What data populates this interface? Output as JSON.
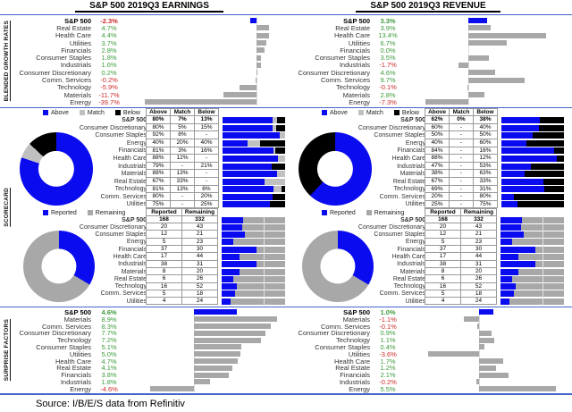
{
  "titles": {
    "earnings": "S&P 500 2019Q3 EARNINGS",
    "revenue": "S&P 500 2019Q3 REVENUE"
  },
  "section_labels": {
    "growth": "BLENDED GROWTH RATES",
    "scorecard": "SCORECARD",
    "surprise": "SURPRISE FACTORS"
  },
  "source_line": "Source: I/B/E/S data from Refinitiv",
  "colors": {
    "blue": "#0b0bf0",
    "gray": "#a8a8a8",
    "silver": "#c0c0c0",
    "black": "#000000",
    "green": "#3d9c3d",
    "red": "#cc2b2b",
    "divider": "#4466cc"
  },
  "chart_data": [
    {
      "id": "earnings-growth",
      "type": "bar",
      "title": "S&P 500 2019Q3 Earnings — Blended Growth Rates (%)",
      "categories": [
        "S&P 500",
        "Real Estate",
        "Health Care",
        "Utilities",
        "Financials",
        "Consumer Staples",
        "Industrials",
        "Consumer Discretionary",
        "Comm. Services",
        "Technology",
        "Materials",
        "Energy"
      ],
      "values": [
        -2.3,
        4.7,
        4.4,
        3.7,
        2.8,
        1.8,
        1.6,
        0.2,
        -0.2,
        -5.9,
        -11.7,
        -39.7
      ],
      "labels": [
        "-2.3%",
        "4.7%",
        "4.4%",
        "3.7%",
        "2.8%",
        "1.8%",
        "1.6%",
        "0.2%",
        "-0.2%",
        "-5.9%",
        "-11.7%",
        "-39.7%"
      ],
      "xlim": [
        -41,
        9
      ],
      "highlight_index": 0
    },
    {
      "id": "revenue-growth",
      "type": "bar",
      "title": "S&P 500 2019Q3 Revenue — Blended Growth Rates (%)",
      "categories": [
        "S&P 500",
        "Real Estate",
        "Health Care",
        "Utilities",
        "Financials",
        "Consumer Staples",
        "Industrials",
        "Consumer Discretionary",
        "Comm. Services",
        "Technology",
        "Materials",
        "Energy"
      ],
      "values": [
        3.3,
        3.9,
        13.4,
        6.7,
        0.0,
        3.5,
        -1.7,
        4.6,
        9.7,
        -0.1,
        2.8,
        -7.3
      ],
      "labels": [
        "3.3%",
        "3.9%",
        "13.4%",
        "6.7%",
        "0.0%",
        "3.5%",
        "-1.7%",
        "4.6%",
        "9.7%",
        "-0.1%",
        "2.8%",
        "-7.3%"
      ],
      "xlim": [
        -8.2,
        15.8
      ],
      "highlight_index": 0
    },
    {
      "id": "earnings-scorecard-above-match-below",
      "type": "table",
      "title": "Earnings Scorecard — Above / Match / Below",
      "legend": [
        "Above",
        "Match",
        "Below"
      ],
      "headers": [
        "Above",
        "Match",
        "Below"
      ],
      "categories": [
        "S&P 500",
        "Consumer Discretionary",
        "Consumer Staples",
        "Energy",
        "Financials",
        "Health Care",
        "Industrials",
        "Materials",
        "Real Estate",
        "Technology",
        "Comm. Services",
        "Utilities"
      ],
      "rows": [
        [
          "80%",
          "7%",
          "13%"
        ],
        [
          "80%",
          "5%",
          "15%"
        ],
        [
          "92%",
          "8%",
          "-"
        ],
        [
          "40%",
          "20%",
          "40%"
        ],
        [
          "81%",
          "3%",
          "16%"
        ],
        [
          "88%",
          "12%",
          "-"
        ],
        [
          "79%",
          "-",
          "21%"
        ],
        [
          "88%",
          "13%",
          "-"
        ],
        [
          "67%",
          "33%",
          "-"
        ],
        [
          "81%",
          "13%",
          "6%"
        ],
        [
          "80%",
          "-",
          "20%"
        ],
        [
          "75%",
          "-",
          "25%"
        ]
      ],
      "donut": {
        "type": "pie",
        "labels": [
          "Above",
          "Match",
          "Below"
        ],
        "values": [
          80,
          7,
          13
        ]
      }
    },
    {
      "id": "earnings-scorecard-reported",
      "type": "table",
      "title": "Earnings Scorecard — Reported / Remaining",
      "legend": [
        "Reported",
        "Remaining"
      ],
      "headers": [
        "Reported",
        "Remaining"
      ],
      "categories": [
        "S&P 500",
        "Consumer Discretionary",
        "Consumer Staples",
        "Energy",
        "Financials",
        "Health Care",
        "Industrials",
        "Materials",
        "Real Estate",
        "Technology",
        "Comm. Services",
        "Utilities"
      ],
      "rows": [
        [
          168,
          332
        ],
        [
          20,
          43
        ],
        [
          12,
          21
        ],
        [
          5,
          23
        ],
        [
          37,
          30
        ],
        [
          17,
          44
        ],
        [
          38,
          31
        ],
        [
          8,
          20
        ],
        [
          6,
          26
        ],
        [
          16,
          52
        ],
        [
          5,
          18
        ],
        [
          4,
          24
        ]
      ],
      "donut": {
        "type": "pie",
        "labels": [
          "Reported",
          "Remaining"
        ],
        "values": [
          168,
          332
        ]
      }
    },
    {
      "id": "revenue-scorecard-above-match-below",
      "type": "table",
      "title": "Revenue Scorecard — Above / Match / Below",
      "legend": [
        "Above",
        "Match",
        "Below"
      ],
      "headers": [
        "Above",
        "Match",
        "Below"
      ],
      "categories": [
        "S&P 500",
        "Consumer Discretionary",
        "Consumer Staples",
        "Energy",
        "Financials",
        "Health Care",
        "Industrials",
        "Materials",
        "Real Estate",
        "Technology",
        "Comm. Services",
        "Utilities"
      ],
      "rows": [
        [
          "62%",
          "0%",
          "38%"
        ],
        [
          "60%",
          "-",
          "40%"
        ],
        [
          "50%",
          "-",
          "50%"
        ],
        [
          "40%",
          "-",
          "60%"
        ],
        [
          "84%",
          "-",
          "16%"
        ],
        [
          "88%",
          "-",
          "12%"
        ],
        [
          "47%",
          "-",
          "53%"
        ],
        [
          "38%",
          "-",
          "63%"
        ],
        [
          "67%",
          "-",
          "33%"
        ],
        [
          "69%",
          "-",
          "31%"
        ],
        [
          "20%",
          "-",
          "80%"
        ],
        [
          "25%",
          "-",
          "75%"
        ]
      ],
      "donut": {
        "type": "pie",
        "labels": [
          "Above",
          "Match",
          "Below"
        ],
        "values": [
          62,
          0,
          38
        ]
      }
    },
    {
      "id": "revenue-scorecard-reported",
      "type": "table",
      "title": "Revenue Scorecard — Reported / Remaining",
      "legend": [
        "Reported",
        "Remaining"
      ],
      "headers": [
        "Reported",
        "Remaining"
      ],
      "categories": [
        "S&P 500",
        "Consumer Discretionary",
        "Consumer Staples",
        "Energy",
        "Financials",
        "Health Care",
        "Industrials",
        "Materials",
        "Real Estate",
        "Technology",
        "Comm. Services",
        "Utilities"
      ],
      "rows": [
        [
          168,
          332
        ],
        [
          20,
          43
        ],
        [
          12,
          21
        ],
        [
          5,
          23
        ],
        [
          37,
          30
        ],
        [
          17,
          44
        ],
        [
          38,
          31
        ],
        [
          8,
          20
        ],
        [
          6,
          26
        ],
        [
          16,
          52
        ],
        [
          5,
          18
        ],
        [
          4,
          24
        ]
      ],
      "donut": {
        "type": "pie",
        "labels": [
          "Reported",
          "Remaining"
        ],
        "values": [
          168,
          332
        ]
      }
    },
    {
      "id": "earnings-surprise",
      "type": "bar",
      "title": "Earnings Surprise Factors (%)",
      "categories": [
        "S&P 500",
        "Materials",
        "Comm. Services",
        "Consumer Discretionary",
        "Technology",
        "Consumer Staples",
        "Utilities",
        "Health Care",
        "Real Estate",
        "Financials",
        "Industrials",
        "Energy"
      ],
      "values": [
        4.6,
        8.9,
        8.3,
        7.7,
        7.2,
        5.1,
        5.0,
        4.7,
        4.1,
        3.8,
        1.8,
        -4.6
      ],
      "labels": [
        "4.6%",
        "8.9%",
        "8.3%",
        "7.7%",
        "7.2%",
        "5.1%",
        "5.0%",
        "4.7%",
        "4.1%",
        "3.8%",
        "1.8%",
        "-4.6%"
      ],
      "xlim": [
        -5.6,
        9.4
      ],
      "highlight_index": 0
    },
    {
      "id": "revenue-surprise",
      "type": "bar",
      "title": "Revenue Surprise Factors (%)",
      "categories": [
        "S&P 500",
        "Materials",
        "Comm. Services",
        "Consumer Discretionary",
        "Technology",
        "Consumer Staples",
        "Utilities",
        "Health Care",
        "Real Estate",
        "Financials",
        "Industrials",
        "Energy"
      ],
      "values": [
        1.0,
        -1.1,
        -0.1,
        0.9,
        1.1,
        0.4,
        -3.6,
        1.7,
        1.2,
        2.1,
        -0.2,
        5.5
      ],
      "labels": [
        "1.0%",
        "-1.1%",
        "-0.1%",
        "0.9%",
        "1.1%",
        "0.4%",
        "-3.6%",
        "1.7%",
        "1.2%",
        "2.1%",
        "-0.2%",
        "5.5%"
      ],
      "xlim": [
        -4.2,
        5.8
      ],
      "highlight_index": 0
    }
  ]
}
